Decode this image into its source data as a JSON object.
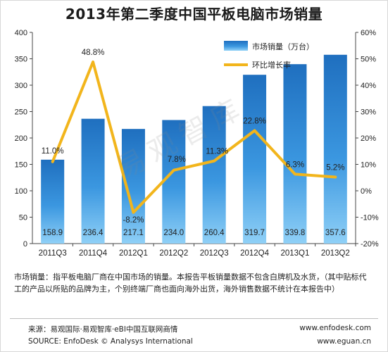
{
  "chart_data": {
    "type": "bar+line",
    "title": "2013年第二季度中国平板电脑市场销量",
    "categories": [
      "2011Q3",
      "2011Q4",
      "2012Q1",
      "2012Q2",
      "2012Q3",
      "2012Q4",
      "2013Q1",
      "2013Q2"
    ],
    "series": [
      {
        "name": "市场销量（万台）",
        "type": "bar",
        "axis": "left",
        "values": [
          158.9,
          236.4,
          217.1,
          234.0,
          260.4,
          319.7,
          339.8,
          357.6
        ],
        "labels": [
          "158.9",
          "236.4",
          "217.1",
          "234.0",
          "260.4",
          "319.7",
          "339.8",
          "357.6"
        ],
        "color": "#1f78c8"
      },
      {
        "name": "环比增长率",
        "type": "line",
        "axis": "right",
        "values": [
          11.0,
          48.8,
          -8.2,
          7.8,
          11.3,
          22.8,
          6.3,
          5.2
        ],
        "labels": [
          "11.0%",
          "48.8%",
          "-8.2%",
          "7.8%",
          "11.3%",
          "22.8%",
          "6.3%",
          "5.2%"
        ],
        "color": "#f2b51c"
      }
    ],
    "y_left": {
      "min": 0,
      "max": 400,
      "ticks": [
        0,
        50,
        100,
        150,
        200,
        250,
        300,
        350,
        400
      ]
    },
    "y_right": {
      "min": -20,
      "max": 60,
      "ticks": [
        -20,
        -10,
        0,
        10,
        20,
        30,
        40,
        50,
        60
      ],
      "tick_labels": [
        "-20%",
        "-10%",
        "0%",
        "10%",
        "20%",
        "30%",
        "40%",
        "50%",
        "60%"
      ]
    },
    "grid": false,
    "legend": "top-right"
  },
  "watermark": "易观智库",
  "note": "市场销量：指平板电脑厂商在中国市场的销量。本报告平板销量数据不包含白牌机及水货，（其中贴标代工的产品以所贴的品牌为主，个别终端厂商也面向海外出货，海外销售数据不统计在本报告中）",
  "source": {
    "line1_left": "来源：易观国际·易观智库·eBI中国互联网商情",
    "line1_right": "www.enfodesk.com",
    "line2_left": "SOURCE: EnfoDesk © Analysys International",
    "line2_right": "www.eguan.cn"
  }
}
